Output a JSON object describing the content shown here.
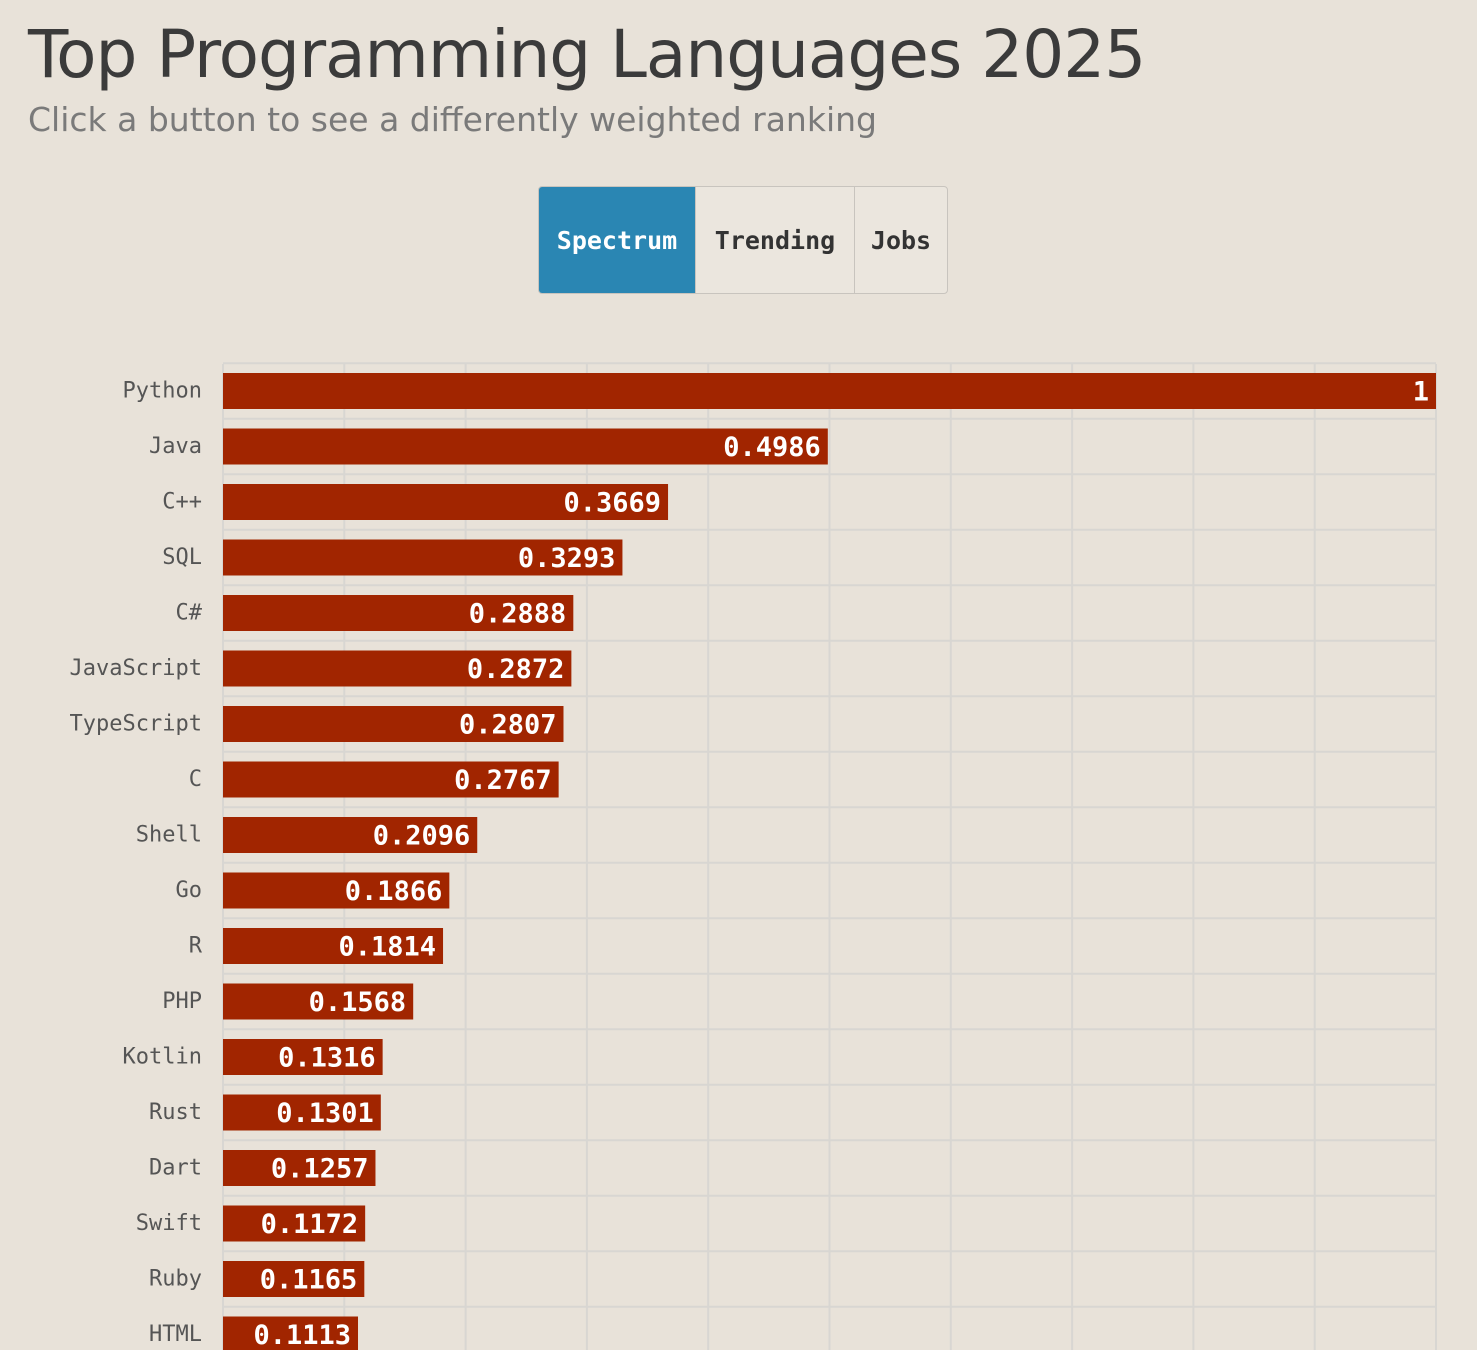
{
  "header": {
    "title": "Top Programming Languages 2025",
    "subtitle": "Click a button to see a differently weighted ranking"
  },
  "tabs": [
    {
      "label": "Spectrum",
      "active": true
    },
    {
      "label": "Trending",
      "active": false
    },
    {
      "label": "Jobs",
      "active": false
    }
  ],
  "colors": {
    "background": "#e8e2d9",
    "bar": "#a12500",
    "active_tab": "#2a86b3",
    "grid": "#d8d6d2"
  },
  "chart_data": {
    "type": "bar",
    "orientation": "horizontal",
    "categories": [
      "Python",
      "Java",
      "C++",
      "SQL",
      "C#",
      "JavaScript",
      "TypeScript",
      "C",
      "Shell",
      "Go",
      "R",
      "PHP",
      "Kotlin",
      "Rust",
      "Dart",
      "Swift",
      "Ruby",
      "HTML"
    ],
    "values": [
      1,
      0.4986,
      0.3669,
      0.3293,
      0.2888,
      0.2872,
      0.2807,
      0.2767,
      0.2096,
      0.1866,
      0.1814,
      0.1568,
      0.1316,
      0.1301,
      0.1257,
      0.1172,
      0.1165,
      0.1113
    ],
    "value_labels": [
      "1",
      "0.4986",
      "0.3669",
      "0.3293",
      "0.2888",
      "0.2872",
      "0.2807",
      "0.2767",
      "0.2096",
      "0.1866",
      "0.1814",
      "0.1568",
      "0.1316",
      "0.1301",
      "0.1257",
      "0.1172",
      "0.1165",
      "0.1113"
    ],
    "xlim": [
      0,
      1
    ],
    "grid": true,
    "grid_step": 0.1,
    "title": "Top Programming Languages 2025",
    "xlabel": "",
    "ylabel": ""
  }
}
